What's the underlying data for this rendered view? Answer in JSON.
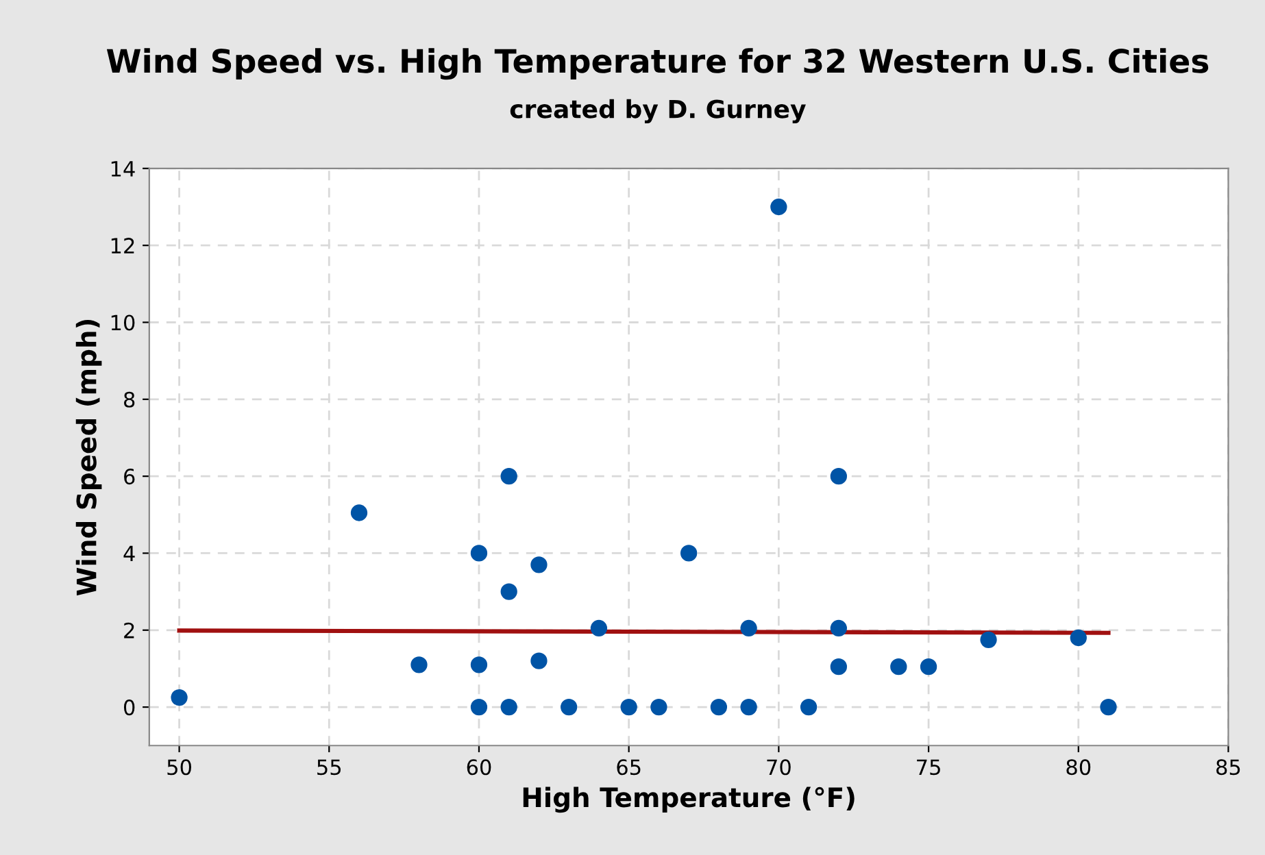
{
  "chart_data": {
    "type": "scatter",
    "title": "Wind Speed vs. High Temperature for 32 Western U.S. Cities",
    "subtitle": "created by D. Gurney",
    "xlabel": "High Temperature (°F)",
    "ylabel": "Wind Speed (mph)",
    "series": [
      {
        "marker": "circle",
        "color": "#0054a6",
        "x": [
          50,
          56,
          58,
          60,
          60,
          60,
          61,
          61,
          61,
          62,
          62,
          63,
          64,
          65,
          66,
          67,
          68,
          69,
          69,
          70,
          71,
          72,
          72,
          72,
          74,
          75,
          77,
          80,
          81
        ],
        "values": [
          0.25,
          5.05,
          1.1,
          4,
          1.1,
          0,
          6,
          3,
          0,
          3.7,
          1.2,
          0,
          2.05,
          0,
          0,
          4,
          0,
          2.05,
          0,
          13,
          0,
          6,
          2.05,
          1.05,
          1.05,
          1.05,
          1.75,
          1.8,
          0
        ]
      },
      {
        "type": "line",
        "marker": "none",
        "color": "#a01010",
        "x": [
          50,
          81
        ],
        "values": [
          1.99,
          1.93
        ]
      }
    ],
    "xlim": [
      49,
      85
    ],
    "ylim": [
      -1,
      14
    ],
    "xticks": [
      50,
      55,
      60,
      65,
      70,
      75,
      80,
      85
    ],
    "yticks": [
      0,
      2,
      4,
      6,
      8,
      10,
      12,
      14
    ],
    "grid": true,
    "legend": false
  }
}
